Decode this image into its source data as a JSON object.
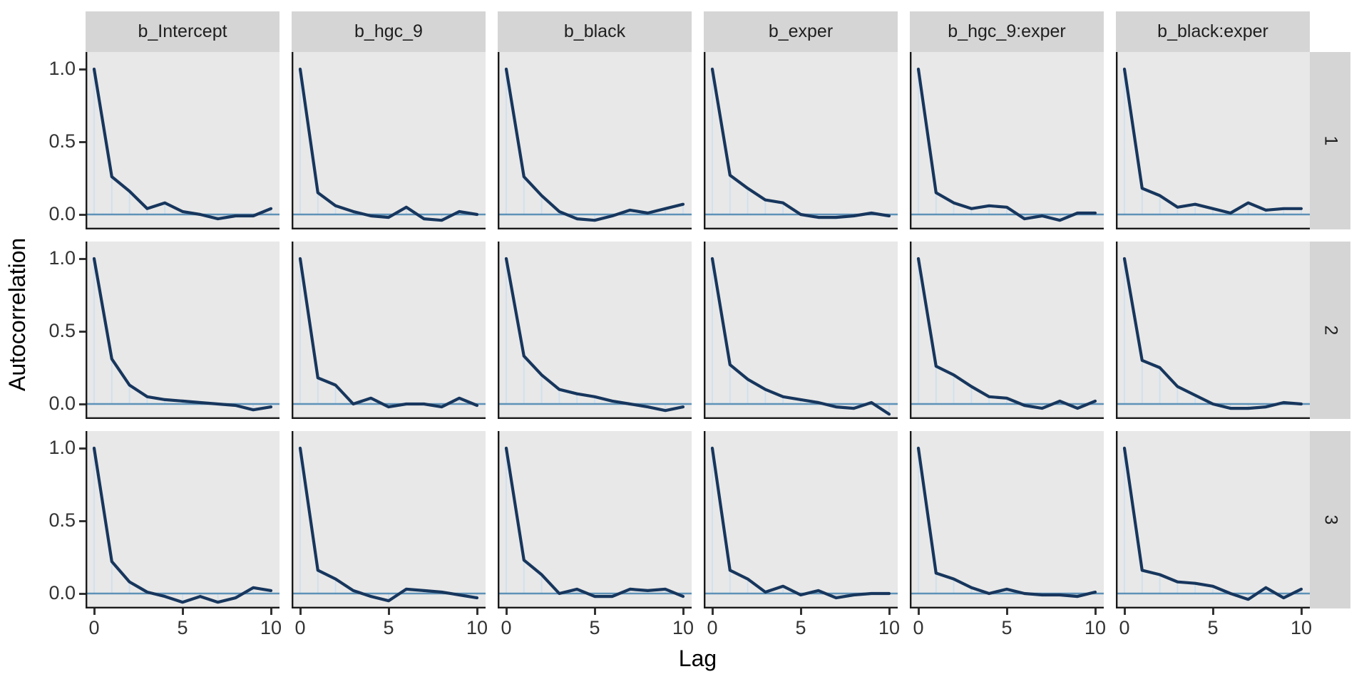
{
  "figure": {
    "kind": "faceted autocorrelation plot (MCMC chains by parameter)",
    "background": "#ffffff"
  },
  "axes": {
    "x_title": "Lag",
    "y_title": "Autocorrelation",
    "x_tick_labels": [
      "0",
      "5",
      "10"
    ],
    "y_tick_labels": [
      "1.0",
      "0.5",
      "0.0"
    ]
  },
  "colors": {
    "panel_background": "#e8e8e8",
    "strip_background": "#d5d5d5",
    "acf_line": "#17365d",
    "zero_line": "#5e92b8",
    "lag_segment": "#cfe0ee",
    "axis_line": "#1a1a1a",
    "tick": "#333333"
  },
  "chart_data": {
    "type": "line",
    "title": "",
    "xlabel": "Lag",
    "ylabel": "Autocorrelation",
    "x": [
      0,
      1,
      2,
      3,
      4,
      5,
      6,
      7,
      8,
      9,
      10
    ],
    "x_ticks": [
      0,
      5,
      10
    ],
    "y_ticks": [
      0.0,
      0.5,
      1.0
    ],
    "ylim": [
      -0.12,
      1.06
    ],
    "grid": false,
    "legend": "none",
    "col_facets": [
      "b_Intercept",
      "b_hgc_9",
      "b_black",
      "b_exper",
      "b_hgc_9:exper",
      "b_black:exper"
    ],
    "row_facets": [
      "1",
      "2",
      "3"
    ],
    "zero_reference_line": 0.0,
    "panels": [
      {
        "chain": "1",
        "parameter": "b_Intercept",
        "acf": [
          1.0,
          0.26,
          0.16,
          0.04,
          0.08,
          0.02,
          0.0,
          -0.03,
          -0.01,
          -0.01,
          0.04
        ]
      },
      {
        "chain": "1",
        "parameter": "b_hgc_9",
        "acf": [
          1.0,
          0.15,
          0.06,
          0.02,
          -0.01,
          -0.02,
          0.05,
          -0.03,
          -0.04,
          0.02,
          0.0
        ]
      },
      {
        "chain": "1",
        "parameter": "b_black",
        "acf": [
          1.0,
          0.26,
          0.13,
          0.02,
          -0.03,
          -0.04,
          -0.01,
          0.03,
          0.01,
          0.04,
          0.07
        ]
      },
      {
        "chain": "1",
        "parameter": "b_exper",
        "acf": [
          1.0,
          0.27,
          0.18,
          0.1,
          0.08,
          0.0,
          -0.02,
          -0.02,
          -0.01,
          0.01,
          -0.01
        ]
      },
      {
        "chain": "1",
        "parameter": "b_hgc_9:exper",
        "acf": [
          1.0,
          0.15,
          0.08,
          0.04,
          0.06,
          0.05,
          -0.03,
          -0.01,
          -0.04,
          0.01,
          0.01
        ]
      },
      {
        "chain": "1",
        "parameter": "b_black:exper",
        "acf": [
          1.0,
          0.18,
          0.13,
          0.05,
          0.07,
          0.04,
          0.01,
          0.08,
          0.03,
          0.04,
          0.04
        ]
      },
      {
        "chain": "2",
        "parameter": "b_Intercept",
        "acf": [
          1.0,
          0.31,
          0.13,
          0.05,
          0.03,
          0.02,
          0.01,
          0.0,
          -0.01,
          -0.04,
          -0.02
        ]
      },
      {
        "chain": "2",
        "parameter": "b_hgc_9",
        "acf": [
          1.0,
          0.18,
          0.13,
          0.0,
          0.04,
          -0.02,
          0.0,
          0.0,
          -0.02,
          0.04,
          -0.01
        ]
      },
      {
        "chain": "2",
        "parameter": "b_black",
        "acf": [
          1.0,
          0.33,
          0.2,
          0.1,
          0.07,
          0.05,
          0.02,
          0.0,
          -0.02,
          -0.045,
          -0.02
        ]
      },
      {
        "chain": "2",
        "parameter": "b_exper",
        "acf": [
          1.0,
          0.27,
          0.17,
          0.1,
          0.05,
          0.03,
          0.01,
          -0.02,
          -0.03,
          0.01,
          -0.07
        ]
      },
      {
        "chain": "2",
        "parameter": "b_hgc_9:exper",
        "acf": [
          1.0,
          0.26,
          0.2,
          0.12,
          0.05,
          0.04,
          -0.01,
          -0.03,
          0.02,
          -0.03,
          0.02
        ]
      },
      {
        "chain": "2",
        "parameter": "b_black:exper",
        "acf": [
          1.0,
          0.3,
          0.25,
          0.12,
          0.06,
          0.0,
          -0.03,
          -0.03,
          -0.02,
          0.01,
          0.0
        ]
      },
      {
        "chain": "3",
        "parameter": "b_Intercept",
        "acf": [
          1.0,
          0.22,
          0.08,
          0.01,
          -0.02,
          -0.06,
          -0.02,
          -0.06,
          -0.03,
          0.04,
          0.02
        ]
      },
      {
        "chain": "3",
        "parameter": "b_hgc_9",
        "acf": [
          1.0,
          0.16,
          0.1,
          0.02,
          -0.02,
          -0.05,
          0.03,
          0.02,
          0.01,
          -0.01,
          -0.03
        ]
      },
      {
        "chain": "3",
        "parameter": "b_black",
        "acf": [
          1.0,
          0.23,
          0.13,
          0.0,
          0.03,
          -0.02,
          -0.02,
          0.03,
          0.02,
          0.03,
          -0.02
        ]
      },
      {
        "chain": "3",
        "parameter": "b_exper",
        "acf": [
          1.0,
          0.16,
          0.1,
          0.01,
          0.05,
          -0.01,
          0.02,
          -0.03,
          -0.01,
          0.0,
          0.0
        ]
      },
      {
        "chain": "3",
        "parameter": "b_hgc_9:exper",
        "acf": [
          1.0,
          0.14,
          0.1,
          0.04,
          0.0,
          0.03,
          0.0,
          -0.01,
          -0.01,
          -0.02,
          0.01
        ]
      },
      {
        "chain": "3",
        "parameter": "b_black:exper",
        "acf": [
          1.0,
          0.16,
          0.13,
          0.08,
          0.07,
          0.05,
          0.0,
          -0.04,
          0.04,
          -0.03,
          0.03
        ]
      }
    ]
  }
}
